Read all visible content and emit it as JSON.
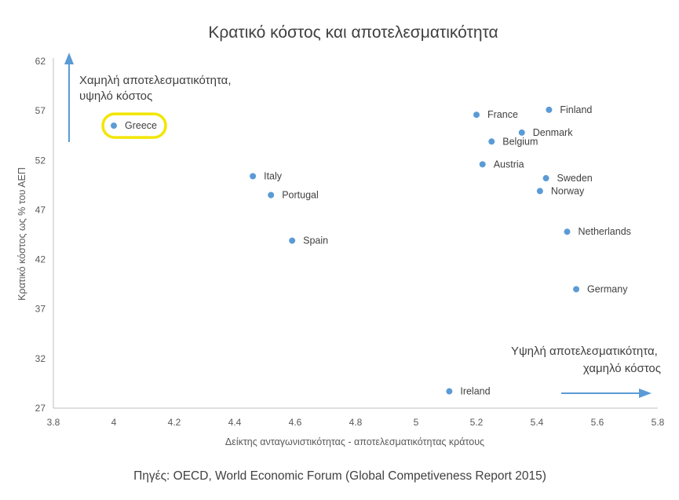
{
  "chart_data": {
    "type": "scatter",
    "title": "Κρατικό κόστος και αποτελεσματικότητα",
    "xlabel": "Δείκτης ανταγωνιστικότητας - αποτελεσματικότητας κράτους",
    "ylabel": "Κρατικό κόστος ως % του ΑΕΠ",
    "xlim": [
      3.8,
      5.8
    ],
    "ylim": [
      27,
      62
    ],
    "xticks": [
      "3.8",
      "4",
      "4.2",
      "4.4",
      "4.6",
      "4.8",
      "5",
      "5.2",
      "5.4",
      "5.6",
      "5.8"
    ],
    "yticks": [
      "27",
      "32",
      "37",
      "42",
      "47",
      "52",
      "57",
      "62"
    ],
    "grid": false,
    "color": "#5b9bd5",
    "highlight_color": "#f2e600",
    "points": [
      {
        "label": "Greece",
        "x": 4.0,
        "y": 55.5,
        "highlight": true
      },
      {
        "label": "Italy",
        "x": 4.46,
        "y": 50.4
      },
      {
        "label": "Portugal",
        "x": 4.52,
        "y": 48.5
      },
      {
        "label": "Spain",
        "x": 4.59,
        "y": 43.9
      },
      {
        "label": "France",
        "x": 5.2,
        "y": 56.6
      },
      {
        "label": "Finland",
        "x": 5.44,
        "y": 57.1
      },
      {
        "label": "Denmark",
        "x": 5.35,
        "y": 54.8
      },
      {
        "label": "Belgium",
        "x": 5.25,
        "y": 53.9
      },
      {
        "label": "Austria",
        "x": 5.22,
        "y": 51.6
      },
      {
        "label": "Sweden",
        "x": 5.43,
        "y": 50.2
      },
      {
        "label": "Norway",
        "x": 5.41,
        "y": 48.9
      },
      {
        "label": "Netherlands",
        "x": 5.5,
        "y": 44.8
      },
      {
        "label": "Germany",
        "x": 5.53,
        "y": 39.0
      },
      {
        "label": "Ireland",
        "x": 5.11,
        "y": 28.7
      }
    ],
    "annotations": {
      "top_left": [
        "Χαμηλή αποτελεσματικότητα,",
        "υψηλό κόστος"
      ],
      "bottom_right": [
        "Υψηλή αποτελεσματικότητα,",
        "χαμηλό κόστος"
      ]
    }
  },
  "source": {
    "prefix": "Πηγές:",
    "text": " OECD, World Economic Forum (Global Competiveness Report 2015)"
  }
}
